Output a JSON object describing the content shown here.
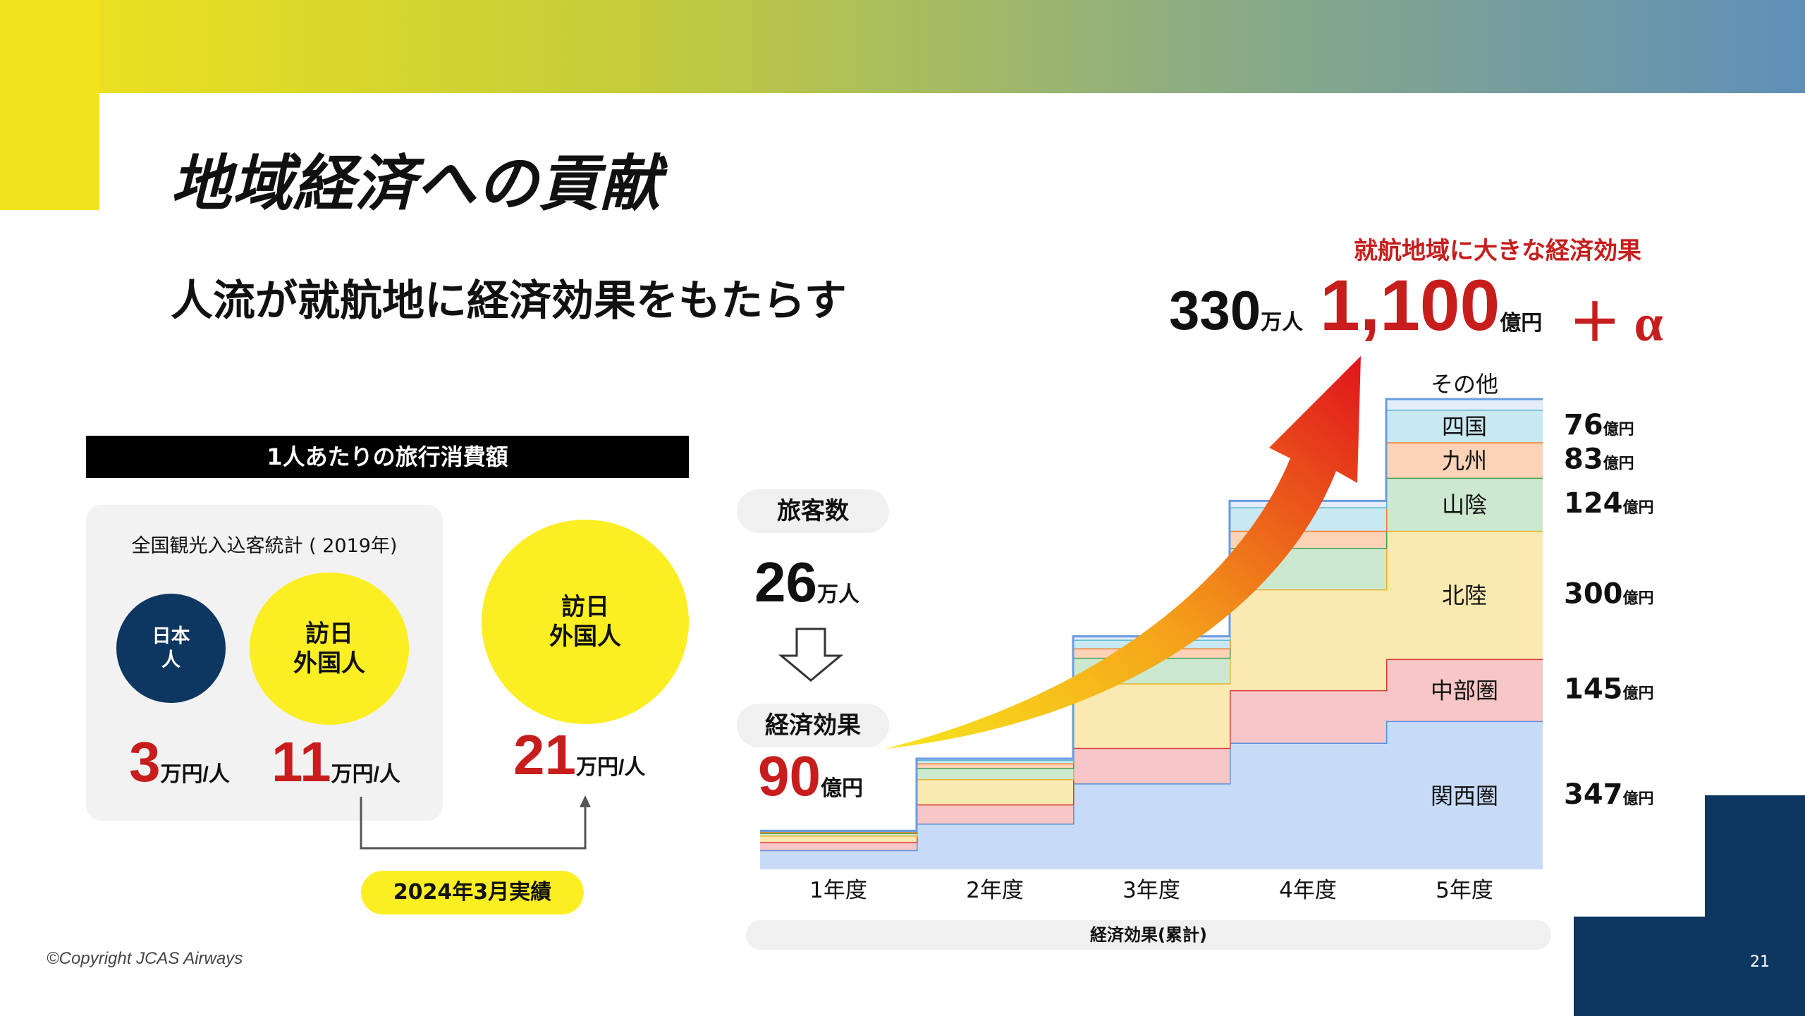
{
  "title": "地域経済への貢献",
  "subtitle": "人流が就航地に経済効果をもたらす",
  "spending": {
    "header": "1人あたりの旅行消費額",
    "survey_label": "全国観光入込客統計 ( 2019年)",
    "japanese": {
      "label_line1": "日本",
      "label_line2": "人",
      "value": "3",
      "unit": "万円/人"
    },
    "foreign_2019": {
      "label_line1": "訪日",
      "label_line2": "外国人",
      "value": "11",
      "unit": "万円/人"
    },
    "foreign_2024": {
      "label_line1": "訪日",
      "label_line2": "外国人",
      "value": "21",
      "unit": "万円/人"
    },
    "badge": "2024年3月実績"
  },
  "passengers": {
    "pill": "旅客数",
    "value": "26",
    "unit": "万人"
  },
  "effect": {
    "pill": "経済効果",
    "value": "90",
    "unit": "億円"
  },
  "headline": {
    "caption": "就航地域に大きな経済効果",
    "passengers_value": "330",
    "passengers_unit": "万人",
    "effect_value": "1,100",
    "effect_unit": "億円",
    "plus_alpha": "＋ α"
  },
  "cumulative_label": "経済効果(累計)",
  "chart_data": {
    "type": "area",
    "title": "経済効果(累計)",
    "categories": [
      "1年度",
      "2年度",
      "3年度",
      "4年度",
      "5年度"
    ],
    "stack_order": [
      "関西圏",
      "中部圏",
      "北陸",
      "山陰",
      "九州",
      "四国",
      "その他"
    ],
    "series": [
      {
        "name": "関西圏",
        "color": "#c7dbf7",
        "line": "#5b8fd9",
        "values": [
          45,
          107,
          201,
          296,
          347
        ],
        "label": "347",
        "unit": "億円"
      },
      {
        "name": "中部圏",
        "color": "#f7c6c6",
        "line": "#d83a3a",
        "values": [
          19,
          45,
          83,
          123,
          145
        ],
        "label": "145",
        "unit": "億円"
      },
      {
        "name": "北陸",
        "color": "#fbe9b2",
        "line": "#e5b52b",
        "values": [
          15,
          59,
          151,
          236,
          300
        ],
        "label": "300",
        "unit": "億円"
      },
      {
        "name": "山陰",
        "color": "#cce8cf",
        "line": "#45a050",
        "values": [
          6,
          26,
          60,
          97,
          124
        ],
        "label": "124",
        "unit": "億円"
      },
      {
        "name": "九州",
        "color": "#fcd3b6",
        "line": "#ef7f2f",
        "values": [
          3,
          11,
          22,
          40,
          83
        ],
        "label": "83",
        "unit": "億円"
      },
      {
        "name": "四国",
        "color": "#c9e9f2",
        "line": "#5bb6cf",
        "values": [
          2,
          8,
          20,
          55,
          76
        ],
        "label": "76",
        "unit": "億円"
      },
      {
        "name": "その他",
        "color": "#e3ecf8",
        "line": "#6a9be0",
        "values": [
          0,
          3,
          8,
          15,
          25
        ],
        "label": "",
        "unit": ""
      }
    ],
    "ylim": [
      0,
      1100
    ]
  },
  "page_number": "21",
  "copyright": "©Copyright JCAS  Airways"
}
